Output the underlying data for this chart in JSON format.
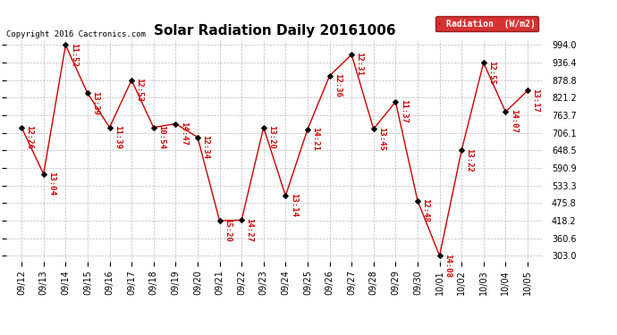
{
  "title": "Solar Radiation Daily 20161006",
  "copyright": "Copyright 2016 Cactronics.com",
  "legend_label": "Radiation  (W/m2)",
  "legend_bg": "#cc0000",
  "legend_fg": "#ffffff",
  "ylim_min": 285,
  "ylim_max": 1010,
  "yticks": [
    303.0,
    360.6,
    418.2,
    475.8,
    533.3,
    590.9,
    648.5,
    706.1,
    763.7,
    821.2,
    878.8,
    936.4,
    994.0
  ],
  "dates": [
    "09/12",
    "09/13",
    "09/14",
    "09/15",
    "09/16",
    "09/17",
    "09/18",
    "09/19",
    "09/20",
    "09/21",
    "09/22",
    "09/23",
    "09/24",
    "09/25",
    "09/26",
    "09/27",
    "09/28",
    "09/29",
    "09/30",
    "10/01",
    "10/02",
    "10/03",
    "10/04",
    "10/05"
  ],
  "values": [
    724,
    571,
    994,
    836,
    724,
    879,
    724,
    736,
    692,
    418,
    420,
    724,
    500,
    718,
    893,
    963,
    719,
    808,
    484,
    303,
    649,
    936,
    775,
    845
  ],
  "labels": [
    "12:26",
    "13:04",
    "11:52",
    "13:39",
    "11:39",
    "12:53",
    "10:54",
    "14:47",
    "12:34",
    "15:20",
    "14:27",
    "13:20",
    "13:14",
    "14:21",
    "12:36",
    "12:31",
    "13:45",
    "11:37",
    "12:48",
    "14:08",
    "13:22",
    "12:55",
    "14:07",
    "13:17"
  ],
  "line_color": "#cc0000",
  "marker_color": "#000000",
  "bg_color": "#ffffff",
  "grid_color": "#aaaaaa",
  "title_fontsize": 11,
  "label_fontsize": 6.5,
  "copyright_fontsize": 6.5,
  "tick_fontsize": 7
}
